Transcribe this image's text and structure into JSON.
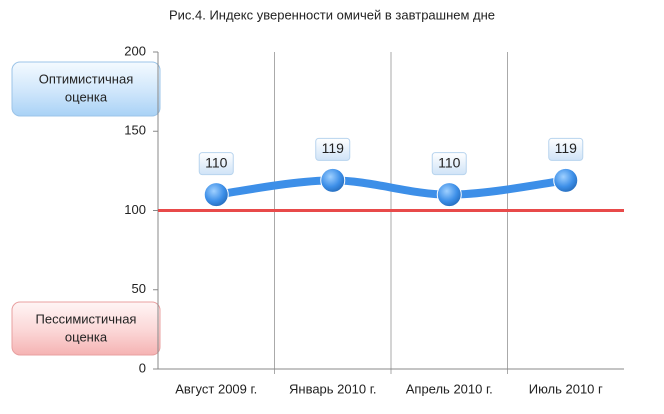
{
  "chart_data": {
    "type": "line",
    "title": "Рис.4. Индекс уверенности омичей в завтрашнем дне",
    "categories": [
      "Август  2009 г.",
      "Январь 2010 г.",
      "Апрель 2010 г.",
      "Июль   2010 г"
    ],
    "values": [
      110,
      119,
      110,
      119
    ],
    "color": "#3d8fe8",
    "ylim": [
      0,
      200
    ],
    "yticks": [
      0,
      50,
      100,
      150,
      200
    ],
    "reference_line": 100,
    "reference_color": "#e84a4a",
    "annotations": [
      [
        "Оптимистичная",
        "оценка"
      ],
      [
        "Пессимистичная",
        "оценка"
      ]
    ]
  }
}
